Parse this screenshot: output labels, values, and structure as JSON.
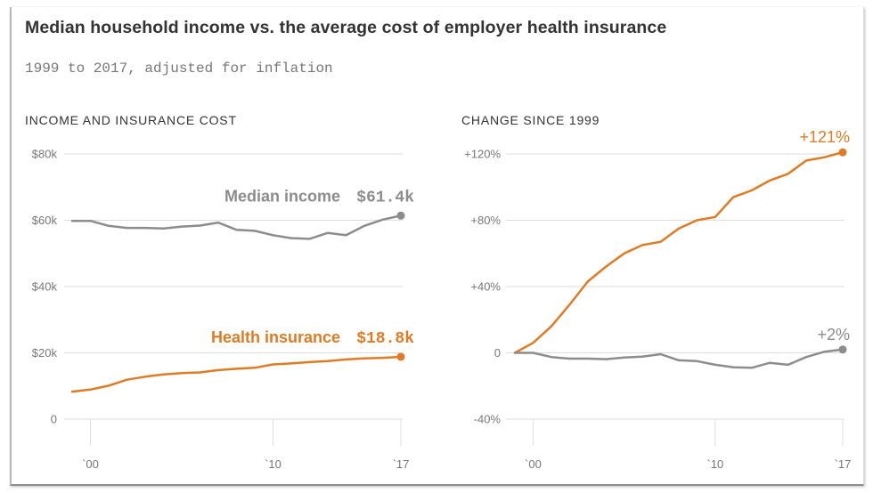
{
  "title": "Median household income vs. the average cost of employer health insurance",
  "subtitle": "1999 to 2017, adjusted for inflation",
  "colors": {
    "income": "#8c8c8c",
    "insurance": "#e07b24",
    "grid": "#dddddd",
    "text": "#333333",
    "tick": "#777777"
  },
  "chart_data": [
    {
      "type": "line",
      "title": "INCOME AND INSURANCE COST",
      "xlabel": "",
      "ylabel": "",
      "x": [
        1999,
        2000,
        2001,
        2002,
        2003,
        2004,
        2005,
        2006,
        2007,
        2008,
        2009,
        2010,
        2011,
        2012,
        2013,
        2014,
        2015,
        2016,
        2017
      ],
      "ylim": [
        0,
        80
      ],
      "y_ticks": [
        {
          "value": 80,
          "label": "$80k"
        },
        {
          "value": 60,
          "label": "$60k"
        },
        {
          "value": 40,
          "label": "$40k"
        },
        {
          "value": 20,
          "label": "$20k"
        },
        {
          "value": 0,
          "label": "0"
        }
      ],
      "x_ticks": [
        {
          "value": 2000,
          "label": "`00"
        },
        {
          "value": 2010,
          "label": "`10"
        },
        {
          "value": 2017,
          "label": "`17"
        }
      ],
      "grid": true,
      "series": [
        {
          "key": "income",
          "name": "Median income",
          "end_label": "$61.4k",
          "values": [
            59.8,
            59.8,
            58.3,
            57.7,
            57.7,
            57.5,
            58.1,
            58.4,
            59.3,
            57.1,
            56.8,
            55.5,
            54.6,
            54.4,
            56.2,
            55.5,
            58.3,
            60.2,
            61.4
          ]
        },
        {
          "key": "insurance",
          "name": "Health insurance",
          "end_label": "$18.8k",
          "values": [
            8.3,
            8.9,
            10.1,
            11.9,
            12.8,
            13.5,
            13.9,
            14.1,
            14.8,
            15.2,
            15.5,
            16.5,
            16.8,
            17.2,
            17.5,
            18.0,
            18.3,
            18.5,
            18.8
          ]
        }
      ]
    },
    {
      "type": "line",
      "title": "CHANGE SINCE 1999",
      "xlabel": "",
      "ylabel": "",
      "x": [
        1999,
        2000,
        2001,
        2002,
        2003,
        2004,
        2005,
        2006,
        2007,
        2008,
        2009,
        2010,
        2011,
        2012,
        2013,
        2014,
        2015,
        2016,
        2017
      ],
      "ylim": [
        -40,
        120
      ],
      "y_ticks": [
        {
          "value": 120,
          "label": "+120%"
        },
        {
          "value": 80,
          "label": "+80%"
        },
        {
          "value": 40,
          "label": "+40%"
        },
        {
          "value": 0,
          "label": "0"
        },
        {
          "value": -40,
          "label": "-40%"
        }
      ],
      "x_ticks": [
        {
          "value": 2000,
          "label": "`00"
        },
        {
          "value": 2010,
          "label": "`10"
        },
        {
          "value": 2017,
          "label": "`17"
        }
      ],
      "grid": true,
      "series": [
        {
          "key": "insurance",
          "name": "Health insurance",
          "end_label": "+121%",
          "values": [
            0,
            6,
            16,
            29,
            43,
            52,
            60,
            65,
            67,
            75,
            80,
            82,
            94,
            98,
            104,
            108,
            116,
            118,
            121
          ]
        },
        {
          "key": "income",
          "name": "Median income",
          "end_label": "+2%",
          "values": [
            0,
            0,
            -2.5,
            -3.5,
            -3.5,
            -3.8,
            -2.8,
            -2.3,
            -0.8,
            -4.5,
            -5,
            -7.2,
            -8.7,
            -9,
            -6,
            -7.2,
            -2.5,
            0.7,
            2
          ]
        }
      ]
    }
  ]
}
